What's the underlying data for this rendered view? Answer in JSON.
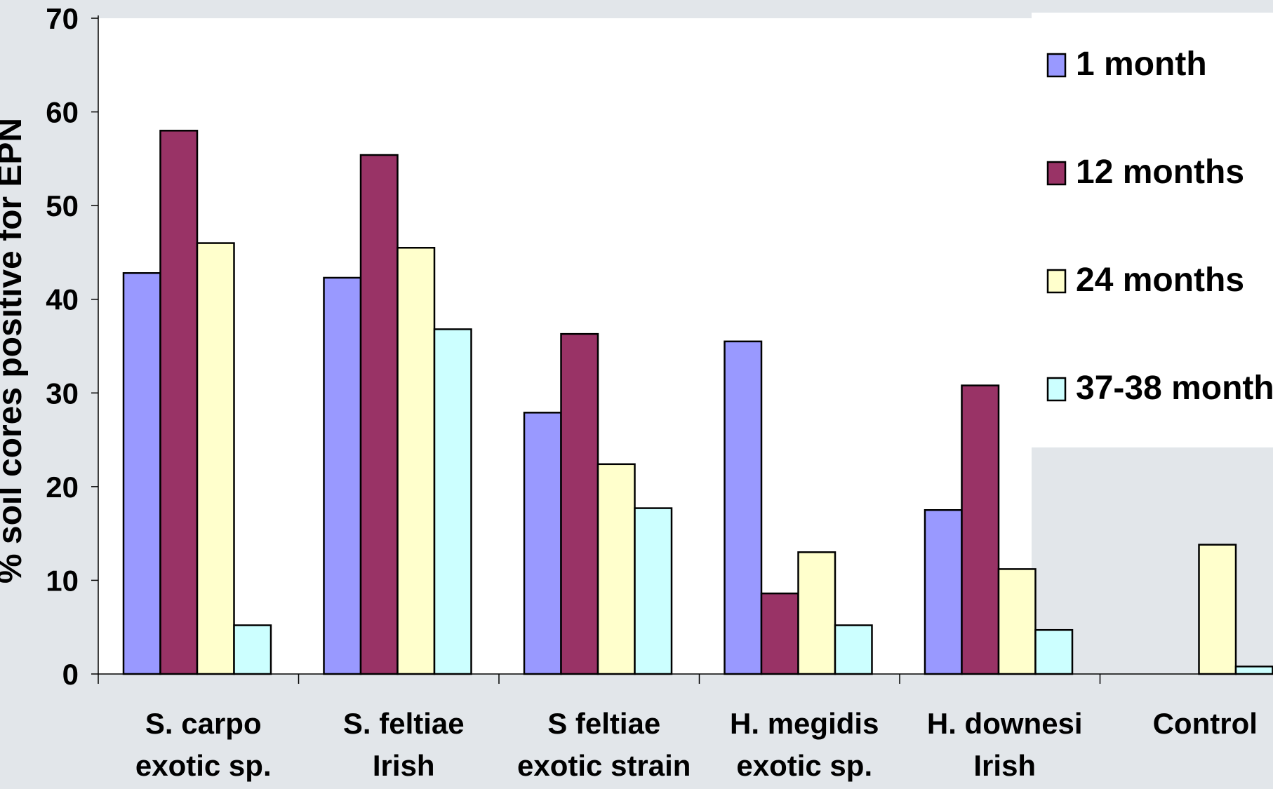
{
  "chart_data": {
    "type": "bar",
    "title": "",
    "ylabel": "% soil cores positive for EPN",
    "xlabel": "",
    "ylim": [
      0,
      70
    ],
    "yticks": [
      0,
      10,
      20,
      30,
      40,
      50,
      60,
      70
    ],
    "categories": [
      [
        "S. carpo",
        "exotic sp."
      ],
      [
        "S. feltiae",
        "Irish"
      ],
      [
        "S feltiae",
        "exotic strain"
      ],
      [
        "H. megidis",
        "exotic sp."
      ],
      [
        "H. downesi",
        "Irish"
      ],
      [
        "Control"
      ]
    ],
    "series": [
      {
        "name": "1 month",
        "color": "#9999ff",
        "values": [
          42.8,
          42.3,
          27.9,
          35.5,
          17.5,
          0
        ]
      },
      {
        "name": "12 months",
        "color": "#993366",
        "values": [
          58.0,
          55.4,
          36.3,
          8.6,
          30.8,
          0
        ]
      },
      {
        "name": "24 months",
        "color": "#ffffcc",
        "values": [
          46.0,
          45.5,
          22.4,
          13.0,
          11.2,
          13.8
        ]
      },
      {
        "name": "37-38 month",
        "color": "#ccffff",
        "values": [
          5.2,
          36.8,
          17.7,
          5.2,
          4.7,
          0.8
        ]
      }
    ],
    "legend_position": "right",
    "grid": false
  }
}
